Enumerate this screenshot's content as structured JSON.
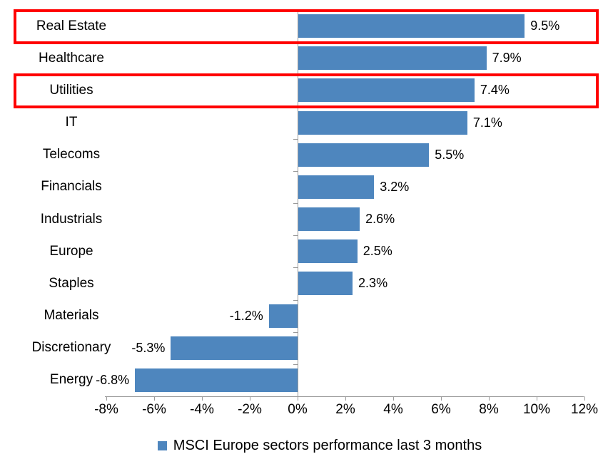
{
  "chart_data": {
    "type": "bar",
    "orientation": "horizontal",
    "categories": [
      "Real Estate",
      "Healthcare",
      "Utilities",
      "IT",
      "Telecoms",
      "Financials",
      "Industrials",
      "Europe",
      "Staples",
      "Materials",
      "Discretionary",
      "Energy"
    ],
    "values": [
      9.5,
      7.9,
      7.4,
      7.1,
      5.5,
      3.2,
      2.6,
      2.5,
      2.3,
      -1.2,
      -5.3,
      -6.8
    ],
    "value_labels": [
      "9.5%",
      "7.9%",
      "7.4%",
      "7.1%",
      "5.5%",
      "3.2%",
      "2.6%",
      "2.5%",
      "2.3%",
      "-1.2%",
      "-5.3%",
      "-6.8%"
    ],
    "x_ticks": [
      {
        "label": "-8%",
        "value": -8
      },
      {
        "label": "-6%",
        "value": -6
      },
      {
        "label": "-4%",
        "value": -4
      },
      {
        "label": "-2%",
        "value": -2
      },
      {
        "label": "0%",
        "value": 0
      },
      {
        "label": "2%",
        "value": 2
      },
      {
        "label": "4%",
        "value": 4
      },
      {
        "label": "6%",
        "value": 6
      },
      {
        "label": "8%",
        "value": 8
      },
      {
        "label": "10%",
        "value": 10
      },
      {
        "label": "12%",
        "value": 12
      }
    ],
    "xlim": [
      -8,
      12
    ],
    "grid": false,
    "legend_position": "bottom-center",
    "legend_label": "MSCI Europe sectors performance last 3 months",
    "title": "",
    "xlabel": "",
    "ylabel": "",
    "bar_color": "#4e86be",
    "axis_color": "#9a9a9a",
    "highlight_box_color": "#ff0000",
    "highlighted_categories": [
      "Real Estate",
      "Utilities"
    ]
  }
}
